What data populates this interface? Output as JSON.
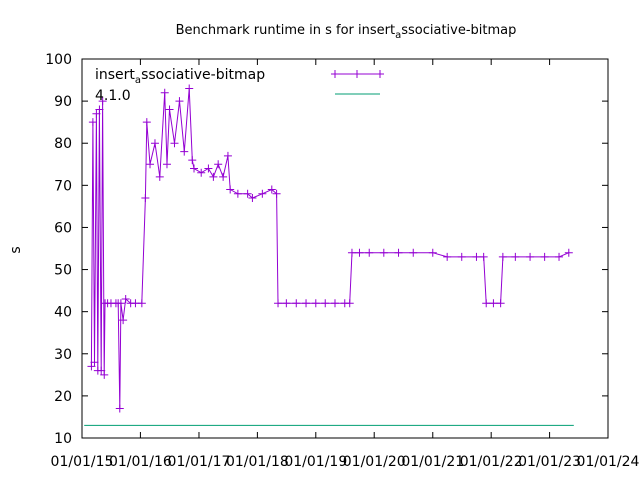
{
  "chart_data": {
    "type": "line",
    "title_parts": [
      "Benchmark runtime in s for insert",
      "a",
      "ssociative-bitmap"
    ],
    "ylabel": "s",
    "xlabel": "",
    "ylim": [
      10,
      100
    ],
    "xlim": [
      "2015-01-01",
      "2024-01-01"
    ],
    "y_ticks": [
      "10",
      "20",
      "30",
      "40",
      "50",
      "60",
      "70",
      "80",
      "90",
      "100"
    ],
    "x_ticks": [
      "01/01/15",
      "01/01/16",
      "01/01/17",
      "01/01/18",
      "01/01/19",
      "01/01/20",
      "01/01/21",
      "01/01/22",
      "01/01/23",
      "01/01/24"
    ],
    "grid": false,
    "legend_position": "top",
    "series": [
      {
        "name_parts": [
          "insert",
          "a",
          "ssociative-bitmap"
        ],
        "color": "#9400d3",
        "marker": "plus",
        "points": [
          [
            "2015-03-01",
            27
          ],
          [
            "2015-03-10",
            85
          ],
          [
            "2015-03-20",
            28
          ],
          [
            "2015-04-01",
            87
          ],
          [
            "2015-04-10",
            26
          ],
          [
            "2015-04-20",
            88
          ],
          [
            "2015-05-01",
            26
          ],
          [
            "2015-05-10",
            90
          ],
          [
            "2015-05-20",
            25
          ],
          [
            "2015-05-25",
            42
          ],
          [
            "2015-06-10",
            42
          ],
          [
            "2015-07-01",
            42
          ],
          [
            "2015-08-01",
            42
          ],
          [
            "2015-08-15",
            42
          ],
          [
            "2015-08-25",
            17
          ],
          [
            "2015-09-01",
            42
          ],
          [
            "2015-09-15",
            38
          ],
          [
            "2015-10-01",
            43
          ],
          [
            "2015-11-01",
            42
          ],
          [
            "2015-12-01",
            42
          ],
          [
            "2016-01-10",
            42
          ],
          [
            "2016-02-01",
            67
          ],
          [
            "2016-02-10",
            85
          ],
          [
            "2016-03-01",
            75
          ],
          [
            "2016-04-01",
            80
          ],
          [
            "2016-05-01",
            72
          ],
          [
            "2016-06-01",
            92
          ],
          [
            "2016-06-15",
            75
          ],
          [
            "2016-07-01",
            88
          ],
          [
            "2016-08-01",
            80
          ],
          [
            "2016-09-01",
            90
          ],
          [
            "2016-10-01",
            78
          ],
          [
            "2016-11-01",
            93
          ],
          [
            "2016-11-20",
            76
          ],
          [
            "2016-12-01",
            74
          ],
          [
            "2017-01-15",
            73
          ],
          [
            "2017-03-01",
            74
          ],
          [
            "2017-04-01",
            72
          ],
          [
            "2017-05-01",
            75
          ],
          [
            "2017-06-01",
            72
          ],
          [
            "2017-07-01",
            77
          ],
          [
            "2017-07-15",
            69
          ],
          [
            "2017-09-01",
            68
          ],
          [
            "2017-11-01",
            68
          ],
          [
            "2017-12-01",
            67
          ],
          [
            "2018-02-01",
            68
          ],
          [
            "2018-04-01",
            69
          ],
          [
            "2018-05-01",
            68
          ],
          [
            "2018-05-10",
            42
          ],
          [
            "2018-07-01",
            42
          ],
          [
            "2018-09-01",
            42
          ],
          [
            "2018-11-01",
            42
          ],
          [
            "2019-01-01",
            42
          ],
          [
            "2019-03-01",
            42
          ],
          [
            "2019-05-01",
            42
          ],
          [
            "2019-07-01",
            42
          ],
          [
            "2019-08-01",
            42
          ],
          [
            "2019-08-15",
            54
          ],
          [
            "2019-10-01",
            54
          ],
          [
            "2019-12-01",
            54
          ],
          [
            "2020-03-01",
            54
          ],
          [
            "2020-06-01",
            54
          ],
          [
            "2020-09-01",
            54
          ],
          [
            "2021-01-01",
            54
          ],
          [
            "2021-04-01",
            53
          ],
          [
            "2021-07-01",
            53
          ],
          [
            "2021-10-01",
            53
          ],
          [
            "2021-11-15",
            53
          ],
          [
            "2021-12-01",
            42
          ],
          [
            "2022-01-15",
            42
          ],
          [
            "2022-03-01",
            42
          ],
          [
            "2022-03-15",
            53
          ],
          [
            "2022-06-01",
            53
          ],
          [
            "2022-09-01",
            53
          ],
          [
            "2022-12-01",
            53
          ],
          [
            "2023-03-01",
            53
          ],
          [
            "2023-05-01",
            54
          ]
        ]
      },
      {
        "name": "4.1.0",
        "color": "#009e73",
        "marker": "none",
        "points": [
          [
            "2015-01-15",
            13
          ],
          [
            "2023-06-01",
            13
          ]
        ]
      }
    ]
  }
}
